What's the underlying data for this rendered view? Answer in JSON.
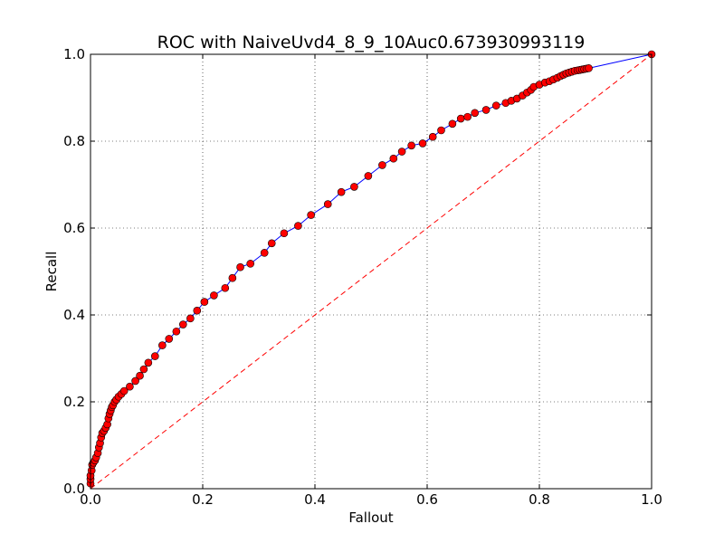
{
  "chart_data": {
    "type": "line",
    "title": "ROC with NaiveUvd4_8_9_10Auc0.673930993119",
    "xlabel": "Fallout",
    "ylabel": "Recall",
    "xlim": [
      0.0,
      1.0
    ],
    "ylim": [
      0.0,
      1.0
    ],
    "x_ticks": [
      "0.0",
      "0.2",
      "0.4",
      "0.6",
      "0.8",
      "1.0"
    ],
    "y_ticks": [
      "0.0",
      "0.2",
      "0.4",
      "0.6",
      "0.8",
      "1.0"
    ],
    "grid": true,
    "legend": "none",
    "colors": {
      "roc_line": "#0000ff",
      "marker_fill": "#ff0000",
      "marker_edge": "#000000",
      "chance_line": "#ff0000"
    },
    "series": [
      {
        "kind": "roc",
        "style": "solid-line-with-circle-markers",
        "x": [
          0.0,
          0.0,
          0.0,
          0.002,
          0.003,
          0.005,
          0.008,
          0.01,
          0.013,
          0.015,
          0.017,
          0.019,
          0.021,
          0.024,
          0.027,
          0.03,
          0.032,
          0.034,
          0.036,
          0.038,
          0.04,
          0.043,
          0.046,
          0.05,
          0.055,
          0.06,
          0.07,
          0.08,
          0.088,
          0.095,
          0.103,
          0.115,
          0.128,
          0.14,
          0.153,
          0.165,
          0.178,
          0.19,
          0.203,
          0.22,
          0.24,
          0.253,
          0.267,
          0.285,
          0.31,
          0.323,
          0.345,
          0.37,
          0.393,
          0.423,
          0.447,
          0.47,
          0.495,
          0.52,
          0.54,
          0.555,
          0.572,
          0.592,
          0.61,
          0.625,
          0.645,
          0.66,
          0.672,
          0.685,
          0.705,
          0.723,
          0.74,
          0.75,
          0.76,
          0.77,
          0.778,
          0.785,
          0.79,
          0.8,
          0.81,
          0.818,
          0.825,
          0.832,
          0.838,
          0.843,
          0.848,
          0.853,
          0.858,
          0.863,
          0.868,
          0.872,
          0.876,
          0.88,
          0.884,
          0.888,
          1.0
        ],
        "y": [
          0.012,
          0.022,
          0.03,
          0.042,
          0.055,
          0.06,
          0.065,
          0.072,
          0.082,
          0.095,
          0.105,
          0.118,
          0.128,
          0.133,
          0.14,
          0.148,
          0.162,
          0.172,
          0.18,
          0.188,
          0.192,
          0.2,
          0.205,
          0.212,
          0.218,
          0.225,
          0.235,
          0.248,
          0.26,
          0.275,
          0.29,
          0.305,
          0.33,
          0.345,
          0.362,
          0.378,
          0.392,
          0.41,
          0.43,
          0.445,
          0.462,
          0.485,
          0.51,
          0.518,
          0.543,
          0.565,
          0.588,
          0.605,
          0.63,
          0.655,
          0.683,
          0.695,
          0.72,
          0.745,
          0.76,
          0.776,
          0.79,
          0.795,
          0.81,
          0.825,
          0.84,
          0.852,
          0.856,
          0.865,
          0.872,
          0.882,
          0.888,
          0.893,
          0.898,
          0.905,
          0.912,
          0.918,
          0.925,
          0.93,
          0.935,
          0.938,
          0.942,
          0.946,
          0.95,
          0.953,
          0.956,
          0.958,
          0.96,
          0.962,
          0.963,
          0.964,
          0.965,
          0.966,
          0.967,
          0.968,
          1.0
        ]
      },
      {
        "kind": "chance",
        "style": "dashed-line",
        "x": [
          0.0,
          1.0
        ],
        "y": [
          0.0,
          1.0
        ]
      }
    ]
  }
}
